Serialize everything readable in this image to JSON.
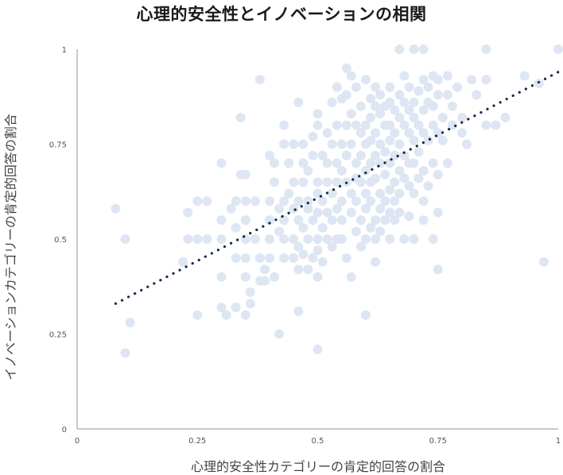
{
  "chart_data": {
    "type": "scatter",
    "title": "心理的安全性とイノベーションの相関",
    "xlabel": "心理的安全性カテゴリーの肯定的回答の割合",
    "ylabel": "イノベーションカテゴリーの肯定的回答の割合",
    "xlim": [
      0,
      1
    ],
    "ylim": [
      0,
      1
    ],
    "x_ticks": [
      "0",
      "0.25",
      "0.5",
      "0.75",
      "1"
    ],
    "y_ticks": [
      "0",
      "0.25",
      "0.5",
      "0.75",
      "1"
    ],
    "grid": false,
    "legend": "none",
    "colors": {
      "points": "#dde6f2",
      "trendline": "#1b2a48",
      "axis": "#c8c8c8"
    },
    "trendline": {
      "style": "dotted",
      "x": [
        0.08,
        1.0
      ],
      "y": [
        0.33,
        0.94
      ]
    },
    "series": [
      {
        "points": [
          [
            0.08,
            0.58
          ],
          [
            0.1,
            0.5
          ],
          [
            0.11,
            0.28
          ],
          [
            0.1,
            0.2
          ],
          [
            0.22,
            0.44
          ],
          [
            0.23,
            0.5
          ],
          [
            0.23,
            0.57
          ],
          [
            0.25,
            0.5
          ],
          [
            0.25,
            0.6
          ],
          [
            0.25,
            0.3
          ],
          [
            0.27,
            0.6
          ],
          [
            0.27,
            0.5
          ],
          [
            0.3,
            0.7
          ],
          [
            0.3,
            0.55
          ],
          [
            0.3,
            0.5
          ],
          [
            0.3,
            0.4
          ],
          [
            0.3,
            0.32
          ],
          [
            0.31,
            0.3
          ],
          [
            0.33,
            0.32
          ],
          [
            0.33,
            0.45
          ],
          [
            0.32,
            0.58
          ],
          [
            0.34,
            0.67
          ],
          [
            0.35,
            0.67
          ],
          [
            0.34,
            0.82
          ],
          [
            0.33,
            0.6
          ],
          [
            0.33,
            0.53
          ],
          [
            0.35,
            0.6
          ],
          [
            0.35,
            0.55
          ],
          [
            0.35,
            0.5
          ],
          [
            0.35,
            0.45
          ],
          [
            0.35,
            0.4
          ],
          [
            0.35,
            0.3
          ],
          [
            0.36,
            0.36
          ],
          [
            0.37,
            0.6
          ],
          [
            0.36,
            0.33
          ],
          [
            0.38,
            0.92
          ],
          [
            0.37,
            0.5
          ],
          [
            0.38,
            0.45
          ],
          [
            0.38,
            0.39
          ],
          [
            0.39,
            0.42
          ],
          [
            0.39,
            0.39
          ],
          [
            0.4,
            0.72
          ],
          [
            0.4,
            0.6
          ],
          [
            0.4,
            0.55
          ],
          [
            0.4,
            0.5
          ],
          [
            0.4,
            0.45
          ],
          [
            0.41,
            0.4
          ],
          [
            0.41,
            0.7
          ],
          [
            0.41,
            0.65
          ],
          [
            0.42,
            0.25
          ],
          [
            0.42,
            0.58
          ],
          [
            0.42,
            0.52
          ],
          [
            0.43,
            0.8
          ],
          [
            0.43,
            0.75
          ],
          [
            0.43,
            0.6
          ],
          [
            0.43,
            0.55
          ],
          [
            0.43,
            0.5
          ],
          [
            0.43,
            0.45
          ],
          [
            0.44,
            0.62
          ],
          [
            0.44,
            0.7
          ],
          [
            0.45,
            0.75
          ],
          [
            0.45,
            0.65
          ],
          [
            0.45,
            0.58
          ],
          [
            0.45,
            0.5
          ],
          [
            0.45,
            0.45
          ],
          [
            0.46,
            0.86
          ],
          [
            0.46,
            0.6
          ],
          [
            0.46,
            0.55
          ],
          [
            0.46,
            0.48
          ],
          [
            0.46,
            0.42
          ],
          [
            0.46,
            0.31
          ],
          [
            0.47,
            0.75
          ],
          [
            0.47,
            0.7
          ],
          [
            0.47,
            0.65
          ],
          [
            0.47,
            0.53
          ],
          [
            0.47,
            0.46
          ],
          [
            0.48,
            0.68
          ],
          [
            0.48,
            0.6
          ],
          [
            0.48,
            0.58
          ],
          [
            0.48,
            0.5
          ],
          [
            0.48,
            0.42
          ],
          [
            0.49,
            0.77
          ],
          [
            0.49,
            0.72
          ],
          [
            0.49,
            0.55
          ],
          [
            0.49,
            0.45
          ],
          [
            0.5,
            0.83
          ],
          [
            0.5,
            0.8
          ],
          [
            0.5,
            0.65
          ],
          [
            0.5,
            0.62
          ],
          [
            0.5,
            0.57
          ],
          [
            0.5,
            0.5
          ],
          [
            0.5,
            0.47
          ],
          [
            0.5,
            0.4
          ],
          [
            0.5,
            0.21
          ],
          [
            0.51,
            0.72
          ],
          [
            0.51,
            0.6
          ],
          [
            0.51,
            0.53
          ],
          [
            0.51,
            0.44
          ],
          [
            0.52,
            0.78
          ],
          [
            0.52,
            0.7
          ],
          [
            0.52,
            0.65
          ],
          [
            0.52,
            0.57
          ],
          [
            0.52,
            0.5
          ],
          [
            0.53,
            0.86
          ],
          [
            0.53,
            0.75
          ],
          [
            0.53,
            0.62
          ],
          [
            0.53,
            0.55
          ],
          [
            0.53,
            0.48
          ],
          [
            0.54,
            0.9
          ],
          [
            0.54,
            0.8
          ],
          [
            0.54,
            0.7
          ],
          [
            0.54,
            0.65
          ],
          [
            0.54,
            0.58
          ],
          [
            0.54,
            0.5
          ],
          [
            0.55,
            0.87
          ],
          [
            0.55,
            0.75
          ],
          [
            0.55,
            0.68
          ],
          [
            0.55,
            0.6
          ],
          [
            0.55,
            0.55
          ],
          [
            0.55,
            0.5
          ],
          [
            0.56,
            0.95
          ],
          [
            0.56,
            0.88
          ],
          [
            0.56,
            0.8
          ],
          [
            0.56,
            0.72
          ],
          [
            0.56,
            0.65
          ],
          [
            0.56,
            0.45
          ],
          [
            0.57,
            0.93
          ],
          [
            0.57,
            0.83
          ],
          [
            0.57,
            0.75
          ],
          [
            0.57,
            0.62
          ],
          [
            0.57,
            0.57
          ],
          [
            0.57,
            0.4
          ],
          [
            0.58,
            0.9
          ],
          [
            0.58,
            0.8
          ],
          [
            0.58,
            0.7
          ],
          [
            0.58,
            0.66
          ],
          [
            0.58,
            0.6
          ],
          [
            0.58,
            0.52
          ],
          [
            0.59,
            0.85
          ],
          [
            0.59,
            0.78
          ],
          [
            0.59,
            0.72
          ],
          [
            0.59,
            0.65
          ],
          [
            0.59,
            0.55
          ],
          [
            0.59,
            0.48
          ],
          [
            0.6,
            0.92
          ],
          [
            0.6,
            0.8
          ],
          [
            0.6,
            0.75
          ],
          [
            0.6,
            0.68
          ],
          [
            0.6,
            0.62
          ],
          [
            0.6,
            0.58
          ],
          [
            0.6,
            0.5
          ],
          [
            0.6,
            0.3
          ],
          [
            0.61,
            0.87
          ],
          [
            0.61,
            0.82
          ],
          [
            0.61,
            0.76
          ],
          [
            0.61,
            0.7
          ],
          [
            0.61,
            0.65
          ],
          [
            0.61,
            0.6
          ],
          [
            0.61,
            0.53
          ],
          [
            0.62,
            0.9
          ],
          [
            0.62,
            0.85
          ],
          [
            0.62,
            0.78
          ],
          [
            0.62,
            0.72
          ],
          [
            0.62,
            0.66
          ],
          [
            0.62,
            0.55
          ],
          [
            0.62,
            0.5
          ],
          [
            0.62,
            0.44
          ],
          [
            0.63,
            0.88
          ],
          [
            0.63,
            0.83
          ],
          [
            0.63,
            0.75
          ],
          [
            0.63,
            0.7
          ],
          [
            0.63,
            0.62
          ],
          [
            0.63,
            0.58
          ],
          [
            0.63,
            0.52
          ],
          [
            0.64,
            0.85
          ],
          [
            0.64,
            0.8
          ],
          [
            0.64,
            0.73
          ],
          [
            0.64,
            0.67
          ],
          [
            0.64,
            0.6
          ],
          [
            0.64,
            0.55
          ],
          [
            0.65,
            0.9
          ],
          [
            0.65,
            0.86
          ],
          [
            0.65,
            0.8
          ],
          [
            0.65,
            0.76
          ],
          [
            0.65,
            0.7
          ],
          [
            0.65,
            0.63
          ],
          [
            0.65,
            0.57
          ],
          [
            0.65,
            0.5
          ],
          [
            0.66,
            0.84
          ],
          [
            0.66,
            0.78
          ],
          [
            0.66,
            0.72
          ],
          [
            0.66,
            0.65
          ],
          [
            0.66,
            0.6
          ],
          [
            0.66,
            0.55
          ],
          [
            0.67,
            1.0
          ],
          [
            0.67,
            0.88
          ],
          [
            0.67,
            0.82
          ],
          [
            0.67,
            0.75
          ],
          [
            0.67,
            0.68
          ],
          [
            0.67,
            0.62
          ],
          [
            0.67,
            0.57
          ],
          [
            0.68,
            0.93
          ],
          [
            0.68,
            0.86
          ],
          [
            0.68,
            0.8
          ],
          [
            0.68,
            0.72
          ],
          [
            0.68,
            0.66
          ],
          [
            0.68,
            0.5
          ],
          [
            0.69,
            0.9
          ],
          [
            0.69,
            0.84
          ],
          [
            0.69,
            0.78
          ],
          [
            0.69,
            0.7
          ],
          [
            0.69,
            0.64
          ],
          [
            0.69,
            0.56
          ],
          [
            0.7,
            1.0
          ],
          [
            0.7,
            0.86
          ],
          [
            0.7,
            0.82
          ],
          [
            0.7,
            0.76
          ],
          [
            0.7,
            0.7
          ],
          [
            0.7,
            0.62
          ],
          [
            0.7,
            0.5
          ],
          [
            0.71,
            0.89
          ],
          [
            0.71,
            0.8
          ],
          [
            0.71,
            0.73
          ],
          [
            0.71,
            0.66
          ],
          [
            0.72,
            1.0
          ],
          [
            0.72,
            0.92
          ],
          [
            0.72,
            0.84
          ],
          [
            0.72,
            0.78
          ],
          [
            0.72,
            0.68
          ],
          [
            0.72,
            0.6
          ],
          [
            0.72,
            0.55
          ],
          [
            0.73,
            0.9
          ],
          [
            0.73,
            0.86
          ],
          [
            0.73,
            0.76
          ],
          [
            0.73,
            0.64
          ],
          [
            0.74,
            0.93
          ],
          [
            0.74,
            0.85
          ],
          [
            0.74,
            0.8
          ],
          [
            0.74,
            0.7
          ],
          [
            0.74,
            0.5
          ],
          [
            0.75,
            0.92
          ],
          [
            0.75,
            0.88
          ],
          [
            0.75,
            0.78
          ],
          [
            0.75,
            0.67
          ],
          [
            0.75,
            0.57
          ],
          [
            0.75,
            0.42
          ],
          [
            0.76,
            0.82
          ],
          [
            0.76,
            0.76
          ],
          [
            0.77,
            0.93
          ],
          [
            0.77,
            0.88
          ],
          [
            0.77,
            0.7
          ],
          [
            0.78,
            0.85
          ],
          [
            0.78,
            0.8
          ],
          [
            0.79,
            0.9
          ],
          [
            0.8,
            0.82
          ],
          [
            0.8,
            0.78
          ],
          [
            0.81,
            0.75
          ],
          [
            0.82,
            0.92
          ],
          [
            0.83,
            0.88
          ],
          [
            0.85,
            1.0
          ],
          [
            0.85,
            0.92
          ],
          [
            0.85,
            0.8
          ],
          [
            0.87,
            0.8
          ],
          [
            0.89,
            0.82
          ],
          [
            0.93,
            0.93
          ],
          [
            0.96,
            0.91
          ],
          [
            0.97,
            0.44
          ],
          [
            1.0,
            1.0
          ]
        ]
      }
    ]
  }
}
